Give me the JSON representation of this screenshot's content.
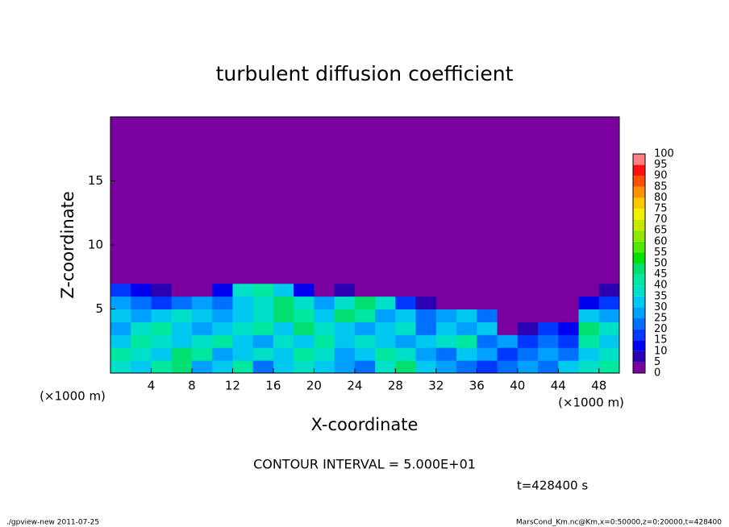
{
  "chart_data": {
    "type": "heatmap",
    "title": "turbulent diffusion coefficient",
    "x_label": "X-coordinate",
    "y_label": "Z-coordinate",
    "x_unit": "(×1000 m)",
    "xlim": [
      0,
      50
    ],
    "xticks": [
      4,
      8,
      12,
      16,
      20,
      24,
      28,
      32,
      36,
      40,
      44,
      48
    ],
    "ylim": [
      0,
      20
    ],
    "yticks": [
      5,
      10,
      15
    ],
    "x": [
      1,
      3,
      5,
      7,
      9,
      11,
      13,
      15,
      17,
      19,
      21,
      23,
      25,
      27,
      29,
      31,
      33,
      35,
      37,
      39,
      41,
      43,
      45,
      47,
      49
    ],
    "y": [
      0.5,
      1.5,
      2.5,
      3.5,
      4.5,
      5.5,
      6.5,
      7.5
    ],
    "z": [
      [
        35,
        30,
        40,
        45,
        25,
        30,
        40,
        20,
        30,
        35,
        30,
        25,
        20,
        35,
        45,
        30,
        25,
        20,
        15,
        20,
        25,
        20,
        30,
        35,
        40
      ],
      [
        40,
        35,
        30,
        45,
        40,
        25,
        30,
        35,
        30,
        40,
        35,
        25,
        30,
        40,
        35,
        25,
        20,
        30,
        25,
        15,
        20,
        25,
        20,
        30,
        35
      ],
      [
        30,
        40,
        35,
        30,
        35,
        40,
        30,
        25,
        35,
        30,
        40,
        30,
        35,
        30,
        25,
        30,
        35,
        40,
        20,
        25,
        15,
        20,
        15,
        40,
        30
      ],
      [
        25,
        35,
        40,
        30,
        25,
        30,
        35,
        40,
        30,
        45,
        35,
        30,
        25,
        30,
        35,
        20,
        30,
        25,
        30,
        0,
        5,
        15,
        10,
        45,
        35
      ],
      [
        30,
        25,
        30,
        35,
        30,
        25,
        30,
        35,
        45,
        40,
        30,
        45,
        40,
        25,
        30,
        20,
        25,
        30,
        20,
        0,
        0,
        0,
        0,
        30,
        25
      ],
      [
        25,
        20,
        15,
        20,
        25,
        20,
        30,
        35,
        45,
        35,
        25,
        35,
        45,
        35,
        15,
        5,
        0,
        0,
        0,
        0,
        0,
        0,
        0,
        10,
        15
      ],
      [
        15,
        10,
        5,
        0,
        0,
        10,
        35,
        40,
        30,
        10,
        0,
        5,
        0,
        0,
        0,
        0,
        0,
        0,
        0,
        0,
        0,
        0,
        0,
        0,
        5
      ],
      [
        0,
        0,
        0,
        0,
        0,
        0,
        0,
        0,
        0,
        0,
        0,
        0,
        0,
        0,
        0,
        0,
        0,
        0,
        0,
        0,
        0,
        0,
        0,
        0,
        0
      ]
    ],
    "levels": [
      0,
      5,
      10,
      15,
      20,
      25,
      30,
      35,
      40,
      45,
      50,
      55,
      60,
      65,
      70,
      75,
      80,
      85,
      90,
      95,
      100
    ],
    "colors": [
      "#7a00a0",
      "#2a00b0",
      "#0000f0",
      "#0038ff",
      "#0070ff",
      "#00a0ff",
      "#00c8f0",
      "#00e0c8",
      "#00e8a0",
      "#00e070",
      "#00e000",
      "#50e800",
      "#90e800",
      "#c8e800",
      "#f0f000",
      "#ffc800",
      "#ff9000",
      "#ff5000",
      "#ff1010",
      "#ff8080"
    ],
    "annotations": [
      "CONTOUR INTERVAL = 5.000E+01",
      "t=428400 s"
    ],
    "footer": [
      "./gpview-new  2011-07-25",
      "MarsCond_Km.nc@Km,x=0:50000,z=0:20000,t=428400"
    ]
  }
}
